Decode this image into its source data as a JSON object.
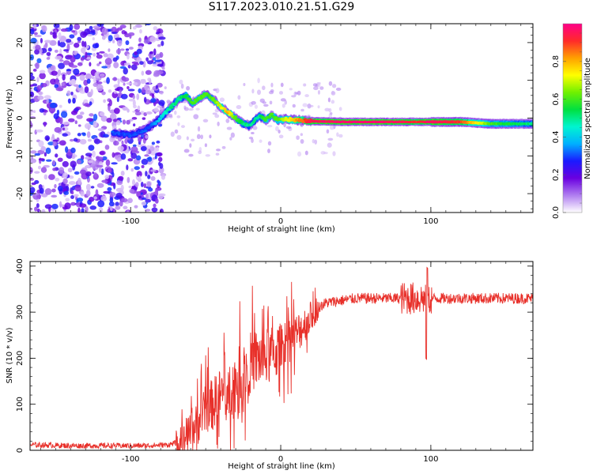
{
  "title": "S117.2023.010.21.51.G29",
  "chart_data": [
    {
      "type": "heatmap",
      "xlabel": "Height of straight line (km)",
      "ylabel": "Frequency (Hz)",
      "xlim": [
        -167,
        168
      ],
      "ylim": [
        -25,
        25
      ],
      "xticks": [
        -100,
        0,
        100
      ],
      "yticks": [
        -20,
        -10,
        0,
        10,
        20
      ],
      "colorbar": {
        "label": "Normalized spectral amplitude",
        "range": [
          0,
          1
        ],
        "ticks": [
          "0.0",
          "0.2",
          "0.4",
          "0.6",
          "0.8"
        ],
        "colormap": [
          "#ffffff",
          "#b07ef0",
          "#6a00e0",
          "#1a1aff",
          "#00b0ff",
          "#00f5d0",
          "#00e040",
          "#70f000",
          "#ffff00",
          "#ffa000",
          "#ff2a2a",
          "#ff0088"
        ]
      },
      "frequency_ridge": {
        "x": [
          -112,
          -100,
          -92,
          -86,
          -80,
          -74,
          -68,
          -63,
          -59,
          -55,
          -50,
          -45,
          -40,
          -35,
          -30,
          -25,
          -21,
          -17,
          -14,
          -10,
          -6,
          -2,
          3,
          10,
          20,
          40,
          60,
          80,
          90,
          100,
          120,
          140,
          168
        ],
        "freq_hz": [
          -4,
          -4.5,
          -3.5,
          -2,
          0,
          2.5,
          5,
          6,
          4,
          5,
          6.5,
          5,
          3,
          1.5,
          0,
          -1.5,
          -2,
          -0.5,
          0.5,
          -0.5,
          0.8,
          -0.5,
          -0.3,
          -0.5,
          -0.8,
          -1,
          -1,
          -1,
          -1,
          -1,
          -1,
          -1.5,
          -1.5
        ],
        "amplitude": [
          0.3,
          0.3,
          0.3,
          0.3,
          0.4,
          0.5,
          0.5,
          0.55,
          0.6,
          0.6,
          0.6,
          0.6,
          0.7,
          0.8,
          0.6,
          0.5,
          0.5,
          0.5,
          0.5,
          0.6,
          0.6,
          0.6,
          0.7,
          0.8,
          0.95,
          0.97,
          0.97,
          0.95,
          0.9,
          0.97,
          0.9,
          0.6,
          0.5
        ]
      }
    },
    {
      "type": "line",
      "xlabel": "Height of straight line (km)",
      "ylabel": "SNR (10 * v/v)",
      "xlim": [
        -167,
        168
      ],
      "ylim": [
        0,
        410
      ],
      "xticks": [
        -100,
        0,
        100
      ],
      "yticks": [
        0,
        100,
        200,
        300,
        400
      ],
      "series": [
        {
          "color": "#e8302a",
          "x": [
            -167,
            -140,
            -110,
            -90,
            -75,
            -65,
            -60,
            -55,
            -50,
            -45,
            -40,
            -35,
            -30,
            -25,
            -20,
            -15,
            -10,
            -5,
            0,
            5,
            10,
            15,
            20,
            25,
            30,
            40,
            50,
            60,
            70,
            75,
            80,
            85,
            90,
            95,
            98,
            100,
            110,
            120,
            140,
            168
          ],
          "y": [
            12,
            10,
            10,
            10,
            12,
            20,
            40,
            60,
            90,
            100,
            120,
            130,
            150,
            170,
            190,
            200,
            200,
            210,
            220,
            240,
            250,
            270,
            290,
            310,
            320,
            325,
            330,
            330,
            330,
            330,
            330,
            330,
            330,
            330,
            320,
            330,
            330,
            330,
            330,
            330
          ]
        }
      ]
    }
  ]
}
